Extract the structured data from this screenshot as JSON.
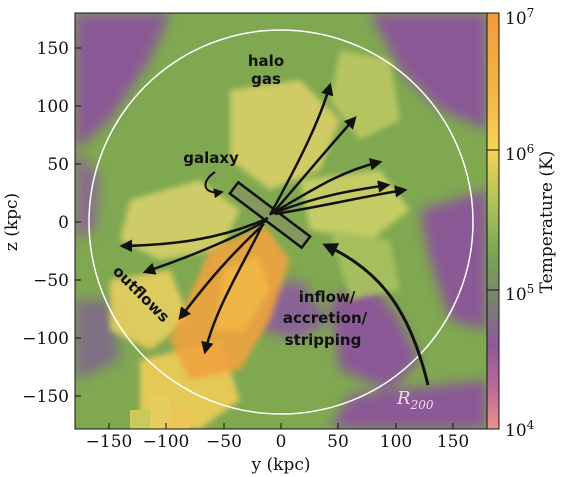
{
  "figure": {
    "x_axis": {
      "label": "y (kpc)",
      "ticks": [
        "−150",
        "−100",
        "−50",
        "0",
        "50",
        "100",
        "150"
      ],
      "range": [
        -180,
        180
      ]
    },
    "y_axis": {
      "label": "z (kpc)",
      "ticks": [
        "150",
        "100",
        "50",
        "0",
        "−50",
        "−100",
        "−150"
      ],
      "range": [
        -180,
        180
      ]
    },
    "colorbar": {
      "label": "Temperature (K)",
      "ticks": [
        {
          "base": "10",
          "exp": "7",
          "value": 10000000
        },
        {
          "base": "10",
          "exp": "6",
          "value": 1000000
        },
        {
          "base": "10",
          "exp": "5",
          "value": 100000
        },
        {
          "base": "10",
          "exp": "4",
          "value": 10000
        }
      ],
      "scale": "log",
      "colors": [
        "#f29a3c",
        "#f5c94f",
        "#7fae52",
        "#8f5a9b",
        "#ee8f8a"
      ]
    },
    "annotations": {
      "halo_line1": "halo",
      "halo_line2": "gas",
      "galaxy": "galaxy",
      "outflows": "outflows",
      "inflow_line1": "inflow/",
      "inflow_line2": "accretion/",
      "inflow_line3": "stripping",
      "r200_main": "R",
      "r200_sub": "200"
    },
    "colors": {
      "green": "#7fa851",
      "purple": "#8b559a",
      "yellow": "#f1cd5a",
      "orange": "#f0a23e",
      "circle": "#ffffff"
    }
  }
}
